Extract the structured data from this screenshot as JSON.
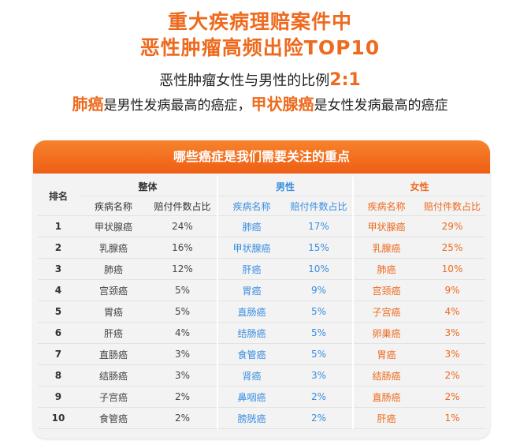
{
  "title_line1": "重大疾病理赔案件中",
  "title_line2": "恶性肿瘤高频出险TOP10",
  "ratio_text": "恶性肿瘤女性与男性的比例",
  "ratio_value": "2:1",
  "line4": {
    "male_cancer": "肺癌",
    "male_text": "是男性发病最高的癌症，",
    "female_cancer": "甲状腺癌",
    "female_text": "是女性发病最高的癌症"
  },
  "banner": "哪些癌症是我们需要关注的重点",
  "table": {
    "rank_header": "排名",
    "groups": {
      "all": "整体",
      "male": "男性",
      "female": "女性"
    },
    "sub_headers": {
      "name": "疾病名称",
      "share": "赔付件数占比"
    },
    "rows": [
      {
        "rank": "1",
        "all_name": "甲状腺癌",
        "all_pct": "24%",
        "male_name": "肺癌",
        "male_pct": "17%",
        "female_name": "甲状腺癌",
        "female_pct": "29%"
      },
      {
        "rank": "2",
        "all_name": "乳腺癌",
        "all_pct": "16%",
        "male_name": "甲状腺癌",
        "male_pct": "15%",
        "female_name": "乳腺癌",
        "female_pct": "25%"
      },
      {
        "rank": "3",
        "all_name": "肺癌",
        "all_pct": "12%",
        "male_name": "肝癌",
        "male_pct": "10%",
        "female_name": "肺癌",
        "female_pct": "10%"
      },
      {
        "rank": "4",
        "all_name": "宫颈癌",
        "all_pct": "5%",
        "male_name": "胃癌",
        "male_pct": "9%",
        "female_name": "宫颈癌",
        "female_pct": "9%"
      },
      {
        "rank": "5",
        "all_name": "胃癌",
        "all_pct": "5%",
        "male_name": "直肠癌",
        "male_pct": "5%",
        "female_name": "子宫癌",
        "female_pct": "4%"
      },
      {
        "rank": "6",
        "all_name": "肝癌",
        "all_pct": "4%",
        "male_name": "结肠癌",
        "male_pct": "5%",
        "female_name": "卵巢癌",
        "female_pct": "3%"
      },
      {
        "rank": "7",
        "all_name": "直肠癌",
        "all_pct": "3%",
        "male_name": "食管癌",
        "male_pct": "5%",
        "female_name": "胃癌",
        "female_pct": "3%"
      },
      {
        "rank": "8",
        "all_name": "结肠癌",
        "all_pct": "3%",
        "male_name": "肾癌",
        "male_pct": "3%",
        "female_name": "结肠癌",
        "female_pct": "2%"
      },
      {
        "rank": "9",
        "all_name": "子宫癌",
        "all_pct": "2%",
        "male_name": "鼻咽癌",
        "male_pct": "2%",
        "female_name": "直肠癌",
        "female_pct": "2%"
      },
      {
        "rank": "10",
        "all_name": "食管癌",
        "all_pct": "2%",
        "male_name": "膀胱癌",
        "male_pct": "2%",
        "female_name": "肝癌",
        "female_pct": "1%"
      }
    ]
  }
}
